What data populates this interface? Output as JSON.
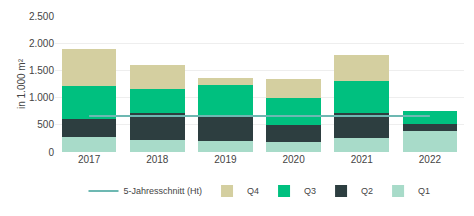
{
  "chart_data": {
    "type": "bar",
    "stacked": true,
    "categories": [
      "2017",
      "2018",
      "2019",
      "2020",
      "2021",
      "2022"
    ],
    "series": [
      {
        "name": "Q1",
        "color": "#a8dbc9",
        "values": [
          280,
          220,
          200,
          190,
          260,
          390
        ]
      },
      {
        "name": "Q2",
        "color": "#2d3e40",
        "values": [
          330,
          490,
          450,
          310,
          460,
          130
        ]
      },
      {
        "name": "Q3",
        "color": "#00c07f",
        "values": [
          600,
          450,
          580,
          500,
          580,
          230
        ]
      },
      {
        "name": "Q4",
        "color": "#d4cfa0",
        "values": [
          680,
          440,
          130,
          350,
          490,
          0
        ]
      },
      {
        "name": "5-Jahresschnitt (Ht)",
        "type": "line",
        "color": "#6db8b2",
        "values": [
          660,
          660,
          660,
          660,
          660,
          660
        ]
      }
    ],
    "y_label": "in 1.000 m²",
    "ylim": [
      0,
      2500
    ],
    "yticks": [
      0,
      500,
      {
        "value": 1000,
        "label": "1.000"
      },
      {
        "value": 1500,
        "label": "1.500"
      },
      {
        "value": 2000,
        "label": "2.000"
      },
      {
        "value": 2500,
        "label": "2.500"
      }
    ],
    "grid": true,
    "legend": "bottom"
  }
}
